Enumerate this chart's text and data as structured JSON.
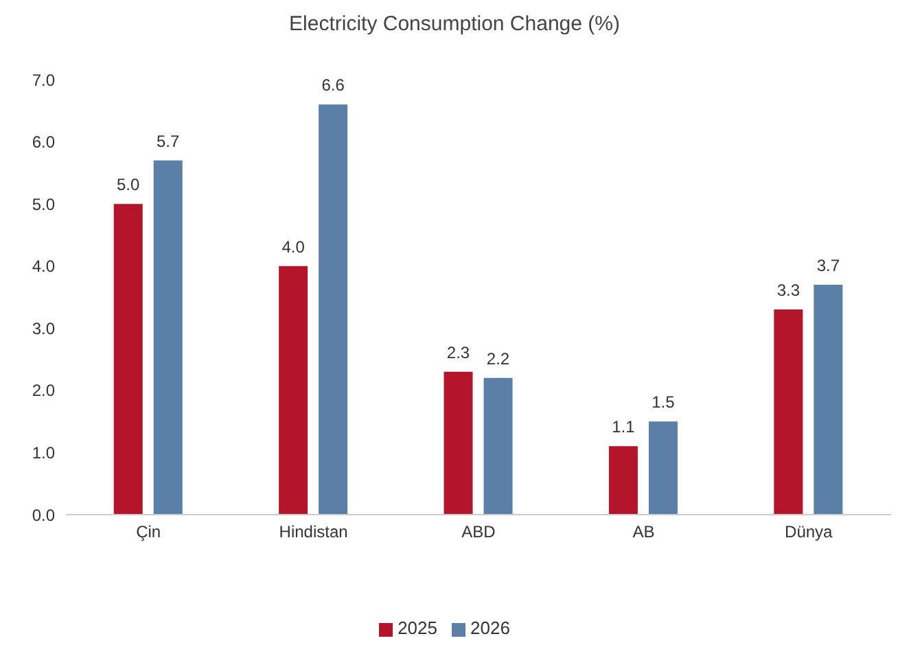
{
  "chart_data": {
    "type": "bar",
    "title": "Electricity Consumption Change (%)",
    "categories": [
      "Çin",
      "Hindistan",
      "ABD",
      "AB",
      "Dünya"
    ],
    "series": [
      {
        "name": "2025",
        "color": "#b5152b",
        "values": [
          5.0,
          4.0,
          2.3,
          1.1,
          3.3
        ],
        "value_labels": [
          "5.0",
          "4.0",
          "2.3",
          "1.1",
          "3.3"
        ]
      },
      {
        "name": "2026",
        "color": "#5b80a8",
        "values": [
          5.7,
          6.6,
          2.2,
          1.5,
          3.7
        ],
        "value_labels": [
          "5.7",
          "6.6",
          "2.2",
          "1.5",
          "3.7"
        ]
      }
    ],
    "ylim": [
      0,
      7
    ],
    "yticks": [
      {
        "value": 0,
        "label": "0.0"
      },
      {
        "value": 1,
        "label": "1.0"
      },
      {
        "value": 2,
        "label": "2.0"
      },
      {
        "value": 3,
        "label": "3.0"
      },
      {
        "value": 4,
        "label": "4.0"
      },
      {
        "value": 5,
        "label": "5.0"
      },
      {
        "value": 6,
        "label": "6.0"
      },
      {
        "value": 7,
        "label": "7.0"
      }
    ],
    "grid": false,
    "legend": "bottom"
  }
}
